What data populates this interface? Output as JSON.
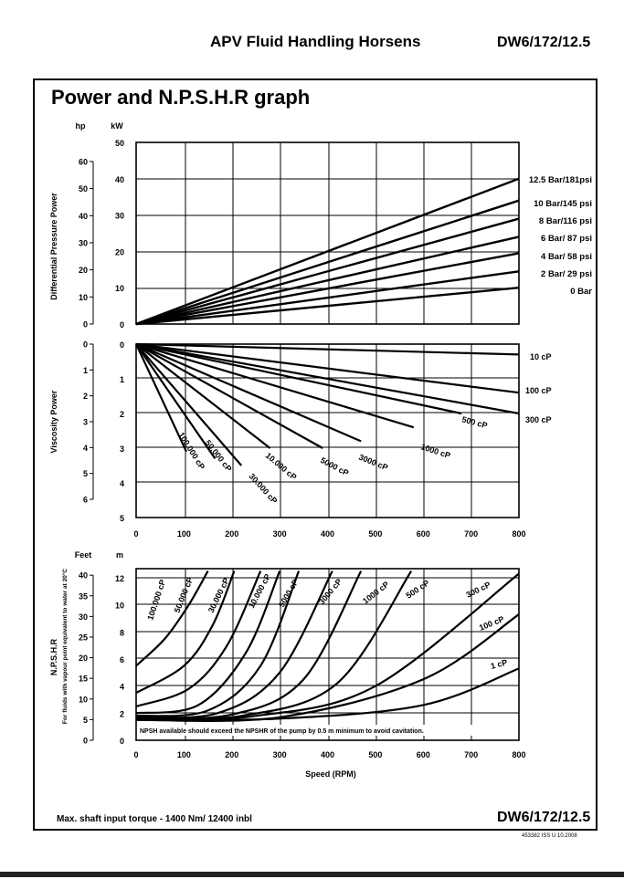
{
  "header": {
    "company": "APV Fluid Handling Horsens",
    "doc_number": "DW6/172/12.5"
  },
  "title": "Power and N.P.S.H.R graph",
  "footer": {
    "torque_note": "Max. shaft input torque - 1400 Nm/ 12400 inbl",
    "doc_number": "DW6/172/12.5",
    "issue": "453382 ISS U 10.2008"
  },
  "chart_data": [
    {
      "id": "differential",
      "type": "line",
      "ylabel": "Differential Pressure Power",
      "units_primary": "kW",
      "units_secondary": "hp",
      "xlim": [
        0,
        800
      ],
      "ylim": [
        0,
        50
      ],
      "yticks": [
        0,
        10,
        20,
        30,
        40,
        50
      ],
      "yticks_secondary": [
        0,
        10,
        20,
        30,
        40,
        50,
        60
      ],
      "series": [
        {
          "name": "12.5 Bar/181psi",
          "x": [
            0,
            800
          ],
          "y": [
            0,
            40
          ]
        },
        {
          "name": "10 Bar/145 psi",
          "x": [
            0,
            800
          ],
          "y": [
            0,
            34
          ]
        },
        {
          "name": "8 Bar/116 psi",
          "x": [
            0,
            800
          ],
          "y": [
            0,
            29
          ]
        },
        {
          "name": "6 Bar/ 87 psi",
          "x": [
            0,
            800
          ],
          "y": [
            0,
            24
          ]
        },
        {
          "name": "4 Bar/ 58 psi",
          "x": [
            0,
            800
          ],
          "y": [
            0,
            19.5
          ]
        },
        {
          "name": "2 Bar/ 29 psi",
          "x": [
            0,
            800
          ],
          "y": [
            0,
            14.5
          ]
        },
        {
          "name": "0 Bar",
          "x": [
            0,
            800
          ],
          "y": [
            0,
            10
          ]
        }
      ]
    },
    {
      "id": "viscosity",
      "type": "line",
      "ylabel": "Viscosity Power",
      "units_primary": "kW",
      "units_secondary": "hp",
      "xlim": [
        0,
        800
      ],
      "ylim": [
        5,
        0
      ],
      "yticks": [
        0,
        1,
        2,
        3,
        4,
        5
      ],
      "yticks_secondary": [
        0,
        1,
        2,
        3,
        4,
        5,
        6
      ],
      "xticks": [
        0,
        100,
        200,
        300,
        400,
        500,
        600,
        700,
        800
      ],
      "series": [
        {
          "name": "10 cP",
          "x": [
            0,
            800
          ],
          "y": [
            0,
            0.3
          ]
        },
        {
          "name": "100 cP",
          "x": [
            0,
            800
          ],
          "y": [
            0,
            1.4
          ]
        },
        {
          "name": "300 cP",
          "x": [
            0,
            800
          ],
          "y": [
            0,
            2.0
          ]
        },
        {
          "name": "500 cP",
          "x": [
            0,
            680
          ],
          "y": [
            0,
            2.0
          ]
        },
        {
          "name": "1000 cP",
          "x": [
            0,
            580
          ],
          "y": [
            0,
            2.4
          ]
        },
        {
          "name": "3000 cP",
          "x": [
            0,
            470
          ],
          "y": [
            0,
            2.8
          ]
        },
        {
          "name": "5000 cP",
          "x": [
            0,
            390
          ],
          "y": [
            0,
            3.0
          ]
        },
        {
          "name": "10.000 cP",
          "x": [
            0,
            280
          ],
          "y": [
            0,
            3.0
          ]
        },
        {
          "name": "30.000 cP",
          "x": [
            0,
            220
          ],
          "y": [
            0,
            3.5
          ]
        },
        {
          "name": "50.000 cP",
          "x": [
            0,
            165
          ],
          "y": [
            0,
            3.3
          ]
        },
        {
          "name": "100.000 cP",
          "x": [
            0,
            105
          ],
          "y": [
            0,
            3.1
          ]
        }
      ]
    },
    {
      "id": "npshr",
      "type": "line",
      "xlabel": "Speed (RPM)",
      "ylabel": "N.P.S.H.R",
      "ylabel_note": "For fluids with vapour point equivalent to water at 20°C",
      "units_primary": "m",
      "units_secondary": "Feet",
      "xlim": [
        0,
        800
      ],
      "ylim": [
        0,
        12.5
      ],
      "yticks": [
        0,
        2,
        4,
        6,
        8,
        10,
        12
      ],
      "yticks_secondary": [
        0,
        5,
        10,
        15,
        20,
        25,
        30,
        35,
        40
      ],
      "xticks": [
        0,
        100,
        200,
        300,
        400,
        500,
        600,
        700,
        800
      ],
      "note": "NPSH available should exceed the NPSHR of the pump by 0.5 m minimum to avoid cavitation.",
      "series": [
        {
          "name": "100.000 cP",
          "x": [
            0,
            60,
            110,
            150
          ],
          "y": [
            5.5,
            7.5,
            10,
            12.5
          ]
        },
        {
          "name": "50.000 cP",
          "x": [
            0,
            100,
            160,
            205
          ],
          "y": [
            3.5,
            5.5,
            8.5,
            12.5
          ]
        },
        {
          "name": "30.000 cP",
          "x": [
            0,
            110,
            190,
            260
          ],
          "y": [
            2.5,
            3.8,
            7,
            12.5
          ]
        },
        {
          "name": "10.000 cP",
          "x": [
            0,
            130,
            230,
            300
          ],
          "y": [
            2,
            2.6,
            6.5,
            12.5
          ]
        },
        {
          "name": "5000 cP",
          "x": [
            0,
            150,
            260,
            340
          ],
          "y": [
            1.8,
            2.2,
            5.5,
            12.5
          ]
        },
        {
          "name": "3000 cP",
          "x": [
            0,
            170,
            300,
            410
          ],
          "y": [
            1.7,
            2,
            5,
            12.5
          ]
        },
        {
          "name": "1000 cP",
          "x": [
            0,
            200,
            350,
            470
          ],
          "y": [
            1.6,
            1.9,
            4.5,
            12.5
          ]
        },
        {
          "name": "500 cP",
          "x": [
            0,
            220,
            420,
            575
          ],
          "y": [
            1.6,
            1.8,
            4.2,
            12.5
          ]
        },
        {
          "name": "300 cP",
          "x": [
            0,
            250,
            500,
            800
          ],
          "y": [
            1.5,
            1.8,
            4,
            12.3
          ]
        },
        {
          "name": "100 cP",
          "x": [
            0,
            300,
            600,
            800
          ],
          "y": [
            1.5,
            1.7,
            4.5,
            9.3
          ]
        },
        {
          "name": "1 cP",
          "x": [
            0,
            300,
            600,
            800
          ],
          "y": [
            1.5,
            1.6,
            2.6,
            5.3
          ]
        }
      ]
    }
  ]
}
